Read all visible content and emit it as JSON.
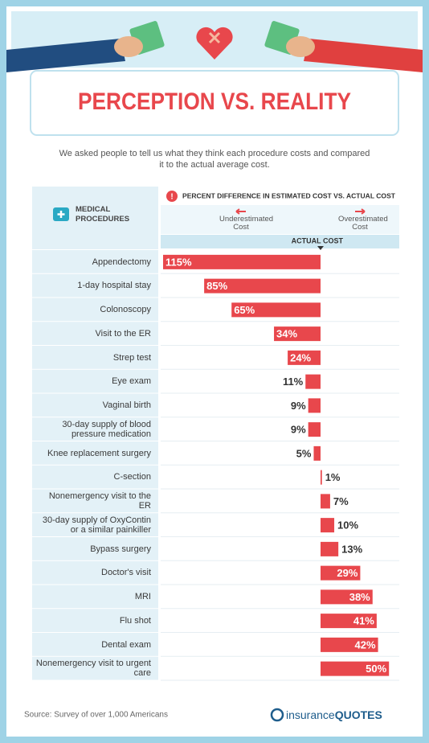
{
  "header": {
    "title": "PERCEPTION VS. REALITY",
    "subtitle": "We asked people to tell us what they think each procedure costs and compared it to the actual average cost."
  },
  "table_header": {
    "left": "MEDICAL PROCEDURES",
    "right": "PERCENT DIFFERENCE IN ESTIMATED COST VS. ACTUAL COST",
    "baseline": "ACTUAL COST"
  },
  "chart_data": {
    "type": "diverging-bar",
    "categories": [
      "Appendectomy",
      "1-day hospital stay",
      "Colonoscopy",
      "Visit to the ER",
      "Strep test",
      "Eye exam",
      "Vaginal birth",
      "30-day supply of blood pressure medication",
      "Knee replacement surgery",
      "C-section",
      "Nonemergency visit to the ER",
      "30-day supply of OxyContin or a similar painkiller",
      "Bypass surgery",
      "Doctor's visit",
      "MRI",
      "Flu shot",
      "Dental exam",
      "Nonemergency visit to urgent care"
    ],
    "series": [
      {
        "name": "Underestimated Cost",
        "color": "#e8474c",
        "direction": "left",
        "values": [
          115,
          85,
          65,
          34,
          24,
          11,
          9,
          9,
          5,
          null,
          null,
          null,
          null,
          null,
          null,
          null,
          null,
          null
        ],
        "value_labels": [
          "115%",
          "85%",
          "65%",
          "34%",
          "24%",
          "11%",
          "9%",
          "9%",
          "5%",
          null,
          null,
          null,
          null,
          null,
          null,
          null,
          null,
          null
        ]
      },
      {
        "name": "Overestimated Cost",
        "color": "#e8474c",
        "direction": "right",
        "values": [
          null,
          null,
          null,
          null,
          null,
          null,
          null,
          null,
          null,
          1,
          7,
          10,
          13,
          29,
          38,
          41,
          42,
          50
        ],
        "value_labels": [
          null,
          null,
          null,
          null,
          null,
          null,
          null,
          null,
          null,
          "1%",
          "7%",
          "10%",
          "13%",
          "29%",
          "38%",
          "41%",
          "42%",
          "50%"
        ]
      }
    ]
  },
  "footer": {
    "source": "Source: Survey of over 1,000 Americans",
    "logo_a": "insurance",
    "logo_b": "QUOTES"
  }
}
